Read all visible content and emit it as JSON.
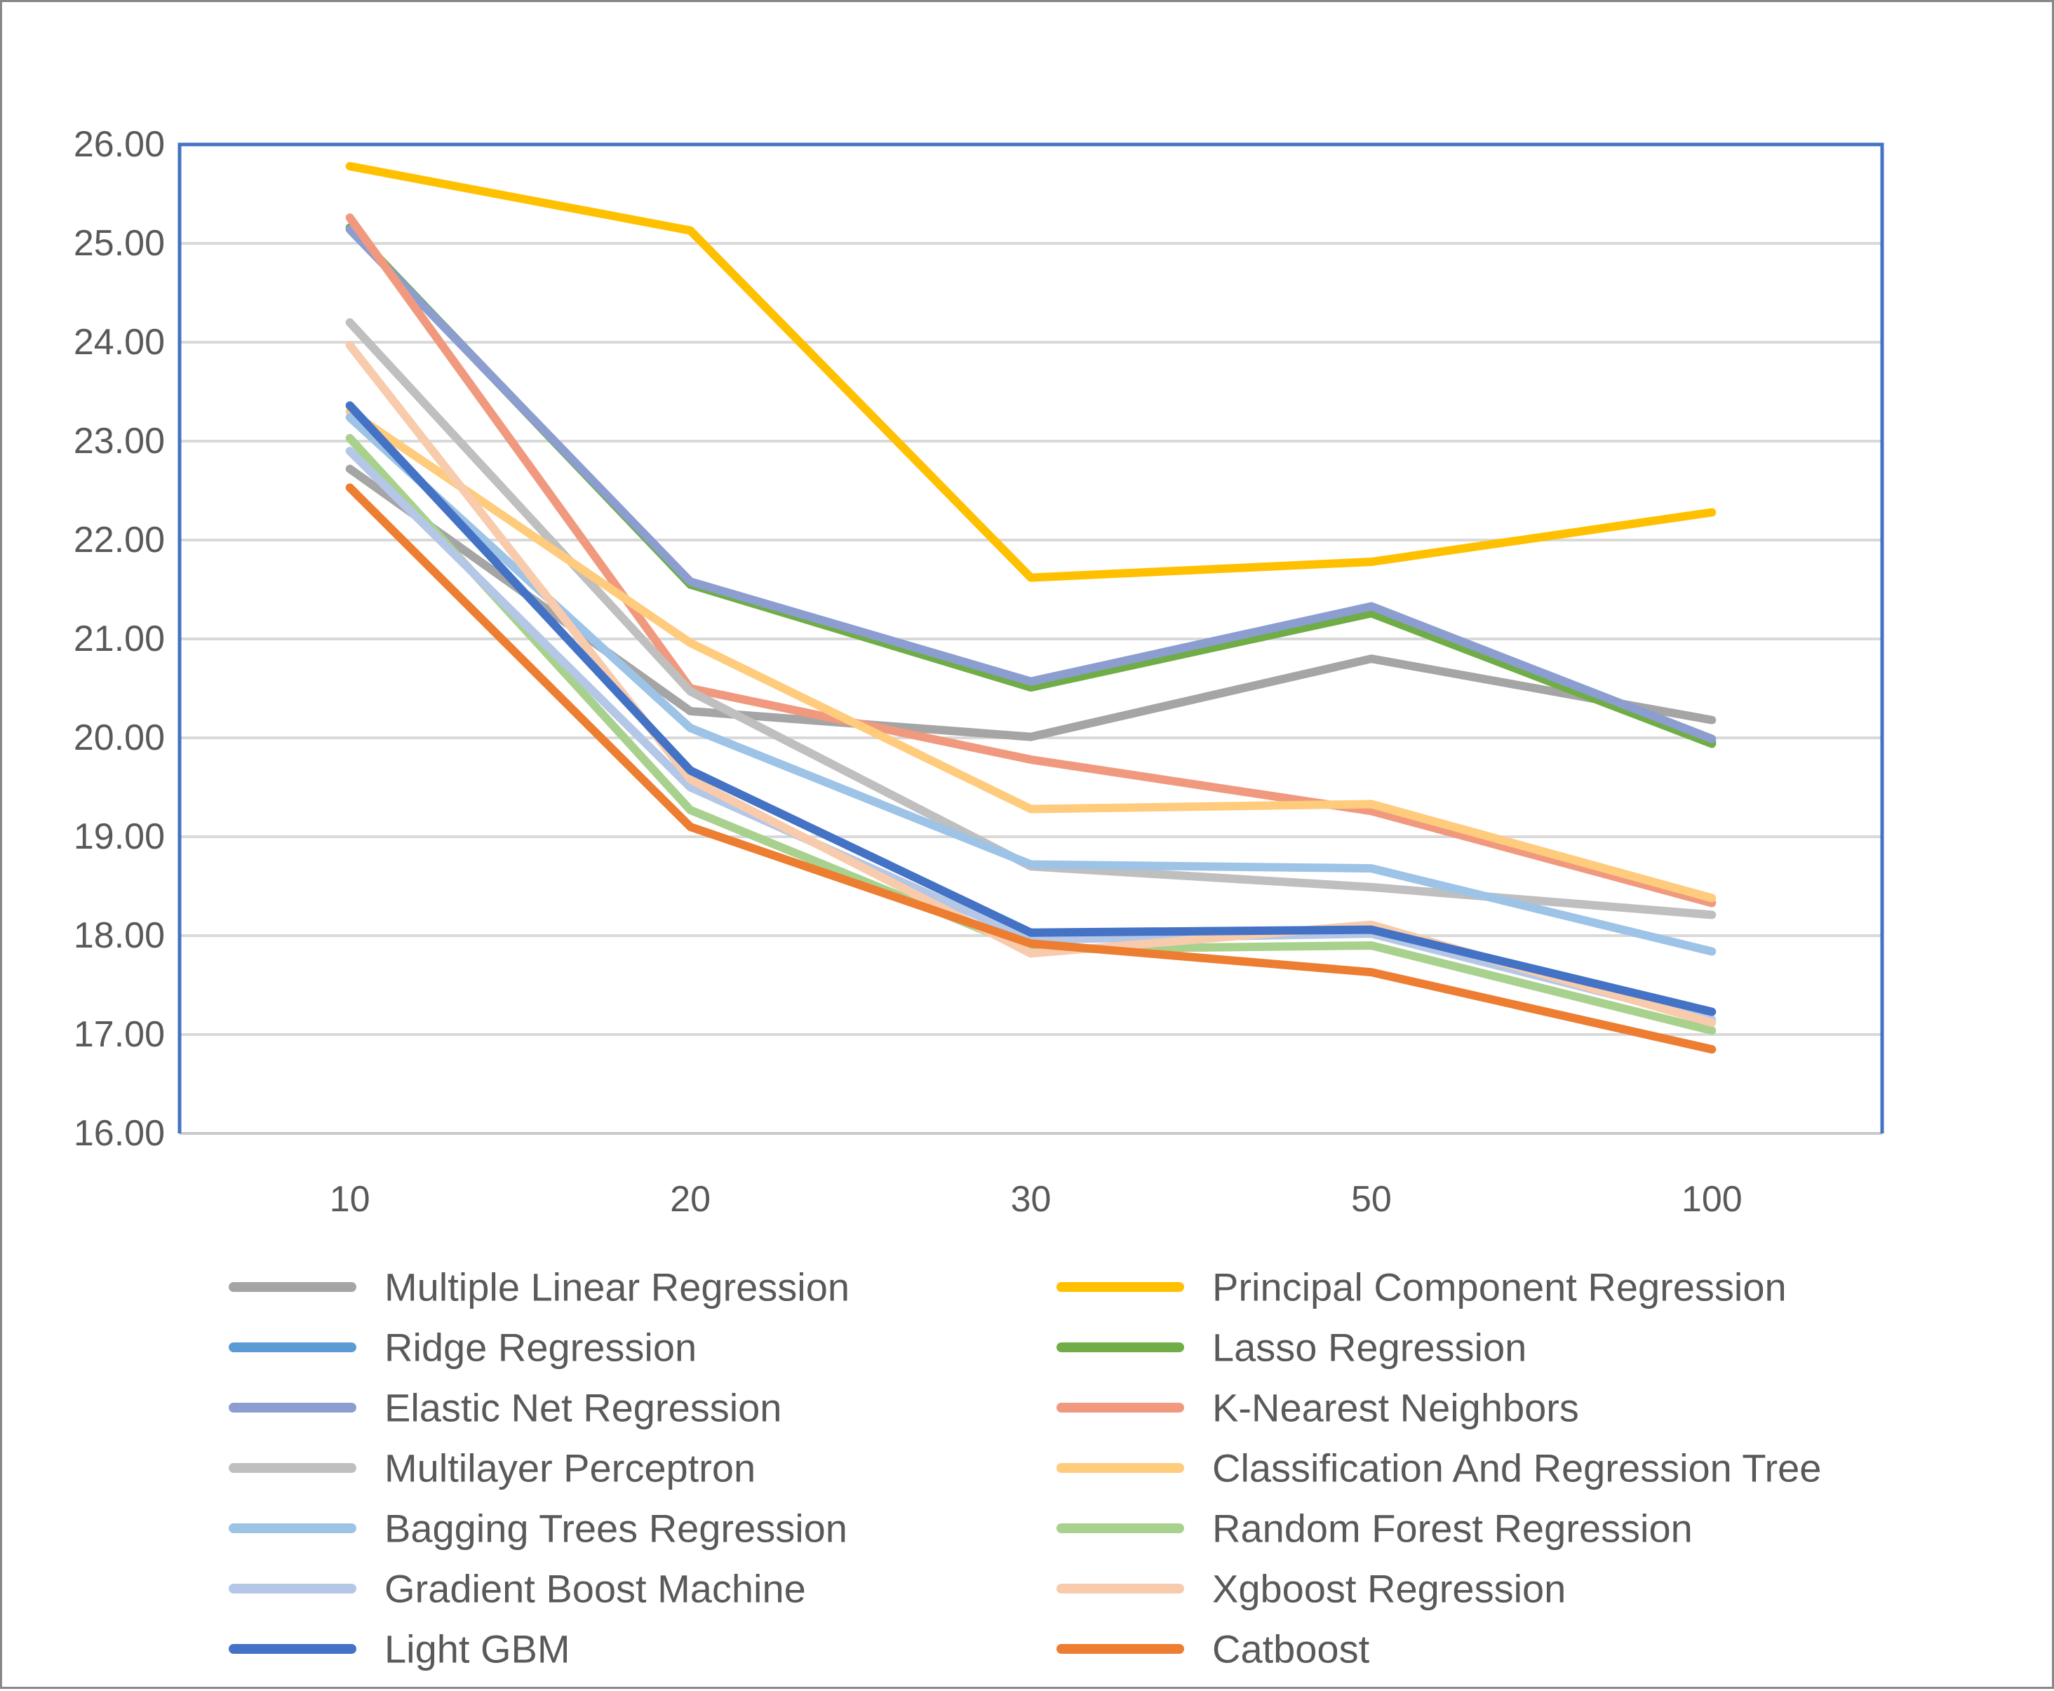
{
  "chart_data": {
    "type": "line",
    "title": "",
    "xlabel": "",
    "ylabel": "",
    "x_tick_labels": [
      "10",
      "20",
      "30",
      "50",
      "100"
    ],
    "y_tick_labels": [
      "26.00",
      "25.00",
      "24.00",
      "23.00",
      "22.00",
      "21.00",
      "20.00",
      "19.00",
      "18.00",
      "17.00",
      "16.00"
    ],
    "ylim": [
      16.0,
      26.0
    ],
    "grid": true,
    "legend_position": "bottom-two-columns",
    "categories": [
      10,
      20,
      30,
      50,
      100
    ],
    "series": [
      {
        "key": "mlr",
        "name": "Multiple Linear Regression",
        "color": "#A5A5A5",
        "values": [
          22.72,
          20.27,
          20.01,
          20.8,
          20.18
        ]
      },
      {
        "key": "pcr",
        "name": "Principal Component Regression",
        "color": "#FFC000",
        "values": [
          25.78,
          25.13,
          21.62,
          21.78,
          22.28
        ]
      },
      {
        "key": "ridge",
        "name": "Ridge Regression",
        "color": "#5B9BD5",
        "values": [
          25.15,
          21.57,
          20.54,
          21.3,
          19.96
        ]
      },
      {
        "key": "lasso",
        "name": "Lasso Regression",
        "color": "#70AD47",
        "values": [
          25.16,
          21.55,
          20.51,
          21.26,
          19.94
        ]
      },
      {
        "key": "elastic",
        "name": "Elastic Net Regression",
        "color": "#8C9DD0",
        "values": [
          25.14,
          21.58,
          20.57,
          21.33,
          19.99
        ]
      },
      {
        "key": "knn",
        "name": "K-Nearest Neighbors",
        "color": "#F0997E",
        "values": [
          25.26,
          20.5,
          19.78,
          19.26,
          18.33
        ]
      },
      {
        "key": "mlp",
        "name": "Multilayer Perceptron",
        "color": "#BFBFBF",
        "values": [
          24.2,
          20.47,
          18.7,
          18.49,
          18.21
        ]
      },
      {
        "key": "cart",
        "name": "Classification And Regression Tree",
        "color": "#FFCB7C",
        "values": [
          23.3,
          20.96,
          19.28,
          19.33,
          18.38
        ]
      },
      {
        "key": "bagging",
        "name": "Bagging Trees Regression",
        "color": "#9DC3E6",
        "values": [
          23.24,
          20.1,
          18.72,
          18.68,
          17.84
        ]
      },
      {
        "key": "rf",
        "name": "Random Forest Regression",
        "color": "#A9D18E",
        "values": [
          23.03,
          19.27,
          17.86,
          17.9,
          17.04
        ]
      },
      {
        "key": "gbm",
        "name": "Gradient Boost Machine",
        "color": "#B4C7E7",
        "values": [
          22.9,
          19.5,
          17.96,
          18.02,
          17.15
        ]
      },
      {
        "key": "xgboost",
        "name": "Xgboost Regression",
        "color": "#F8CBAD",
        "values": [
          23.97,
          19.58,
          17.82,
          18.11,
          17.12
        ]
      },
      {
        "key": "lightgbm",
        "name": "Light GBM",
        "color": "#4472C4",
        "values": [
          23.36,
          19.67,
          18.03,
          18.06,
          17.23
        ]
      },
      {
        "key": "catboost",
        "name": "Catboost",
        "color": "#ED7D31",
        "values": [
          22.53,
          19.1,
          17.92,
          17.63,
          16.85
        ]
      }
    ],
    "legend_column1_indices": [
      0,
      2,
      4,
      6,
      8,
      10,
      12
    ],
    "legend_column2_indices": [
      1,
      3,
      5,
      7,
      9,
      11,
      13
    ]
  },
  "colors": {
    "plot_border": "#4472C4",
    "gridline": "#D9D9D9",
    "axis_line": "#C9C9C9",
    "axis_text": "#595959",
    "legend_text": "#595959",
    "outer_frame": "#888888",
    "background": "#FFFFFF"
  }
}
